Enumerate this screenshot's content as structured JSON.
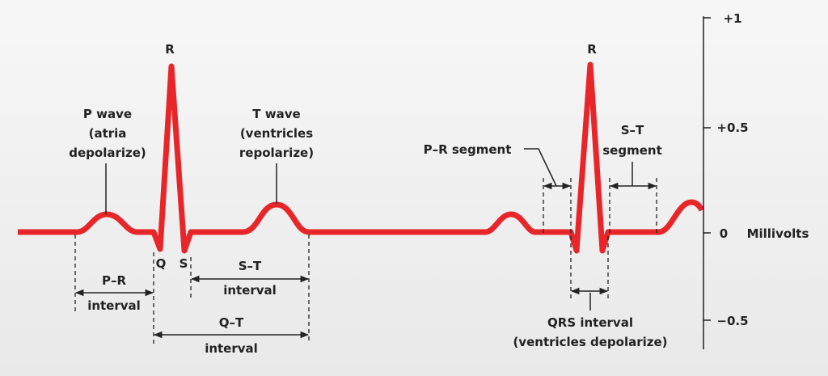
{
  "peaks": [
    "R",
    "R"
  ],
  "p_wave": [
    "P wave",
    "(atria",
    "depolarize)"
  ],
  "t_wave": [
    "T wave",
    "(ventricles",
    "repolarize)"
  ],
  "pr_segment": "P–R segment",
  "st_segment": [
    "S–T",
    "segment"
  ],
  "q_label": "Q",
  "s_label": "S",
  "pr_interval": [
    "P–R",
    "interval"
  ],
  "st_interval": [
    "S–T",
    "interval"
  ],
  "qt_interval": [
    "Q–T",
    "interval"
  ],
  "qrs_interval": [
    "QRS interval",
    "(ventricles depolarize)"
  ],
  "axis": {
    "ticks": [
      "+1",
      "+0.5",
      "0",
      "−0.5"
    ],
    "label": "Millivolts"
  }
}
